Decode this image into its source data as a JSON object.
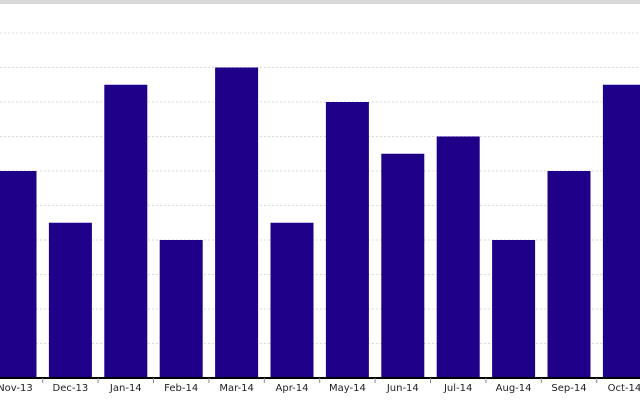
{
  "chart_data": {
    "type": "bar",
    "categories": [
      "Nov-13",
      "Dec-13",
      "Jan-14",
      "Feb-14",
      "Mar-14",
      "Apr-14",
      "May-14",
      "Jun-14",
      "Jul-14",
      "Aug-14",
      "Sep-14",
      "Oct-14"
    ],
    "values": [
      12,
      9,
      17,
      8,
      18,
      9,
      16,
      13,
      14,
      8,
      12,
      17
    ],
    "title": "",
    "xlabel": "",
    "ylabel": "",
    "ylim": [
      0,
      22
    ],
    "grid": true,
    "legend": "none",
    "colors": {
      "bar": "#1f0088",
      "grid": "#d9d9d9",
      "axis": "#000000"
    }
  }
}
